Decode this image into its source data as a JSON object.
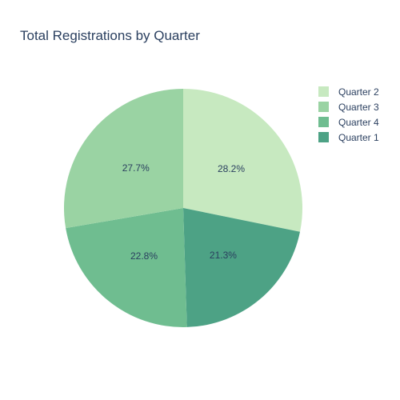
{
  "chart_data": {
    "type": "pie",
    "title": "Total Registrations by Quarter",
    "slices": [
      {
        "label": "Quarter 2",
        "percent": 28.2,
        "percent_label": "28.2%",
        "color": "#c7e9c0"
      },
      {
        "label": "Quarter 1",
        "percent": 21.3,
        "percent_label": "21.3%",
        "color": "#4da285"
      },
      {
        "label": "Quarter 4",
        "percent": 22.8,
        "percent_label": "22.8%",
        "color": "#6fbd90"
      },
      {
        "label": "Quarter 3",
        "percent": 27.7,
        "percent_label": "27.7%",
        "color": "#9ad3a3"
      }
    ],
    "legend": [
      "Quarter 2",
      "Quarter 3",
      "Quarter 4",
      "Quarter 1"
    ],
    "legend_position": "top-right",
    "direction": "clockwise",
    "start_angle": "12 o'clock"
  }
}
